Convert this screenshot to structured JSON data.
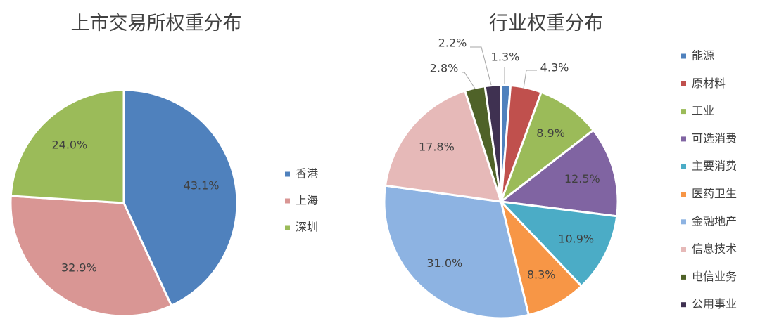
{
  "chart_data": [
    {
      "type": "pie",
      "title": "上市交易所权重分布",
      "categories": [
        "香港",
        "上海",
        "深圳"
      ],
      "values": [
        43.1,
        32.9,
        24.0
      ],
      "labels": [
        "43.1%",
        "32.9%",
        "24.0%"
      ],
      "colors": [
        "#4f81bd",
        "#d99694",
        "#9bbb59"
      ],
      "legend_position": "right"
    },
    {
      "type": "pie",
      "title": "行业权重分布",
      "categories": [
        "能源",
        "原材料",
        "工业",
        "可选消费",
        "主要消费",
        "医药卫生",
        "金融地产",
        "信息技术",
        "电信业务",
        "公用事业"
      ],
      "values": [
        1.3,
        4.3,
        8.9,
        12.5,
        10.9,
        8.3,
        31.0,
        17.8,
        2.8,
        2.2
      ],
      "labels": [
        "1.3%",
        "4.3%",
        "8.9%",
        "12.5%",
        "10.9%",
        "8.3%",
        "31.0%",
        "17.8%",
        "2.8%",
        "2.2%"
      ],
      "colors": [
        "#4f81bd",
        "#c0504d",
        "#9bbb59",
        "#8064a2",
        "#4bacc6",
        "#f79646",
        "#8db3e2",
        "#e6b9b8",
        "#4f6228",
        "#3f3151"
      ],
      "legend_position": "right"
    }
  ]
}
